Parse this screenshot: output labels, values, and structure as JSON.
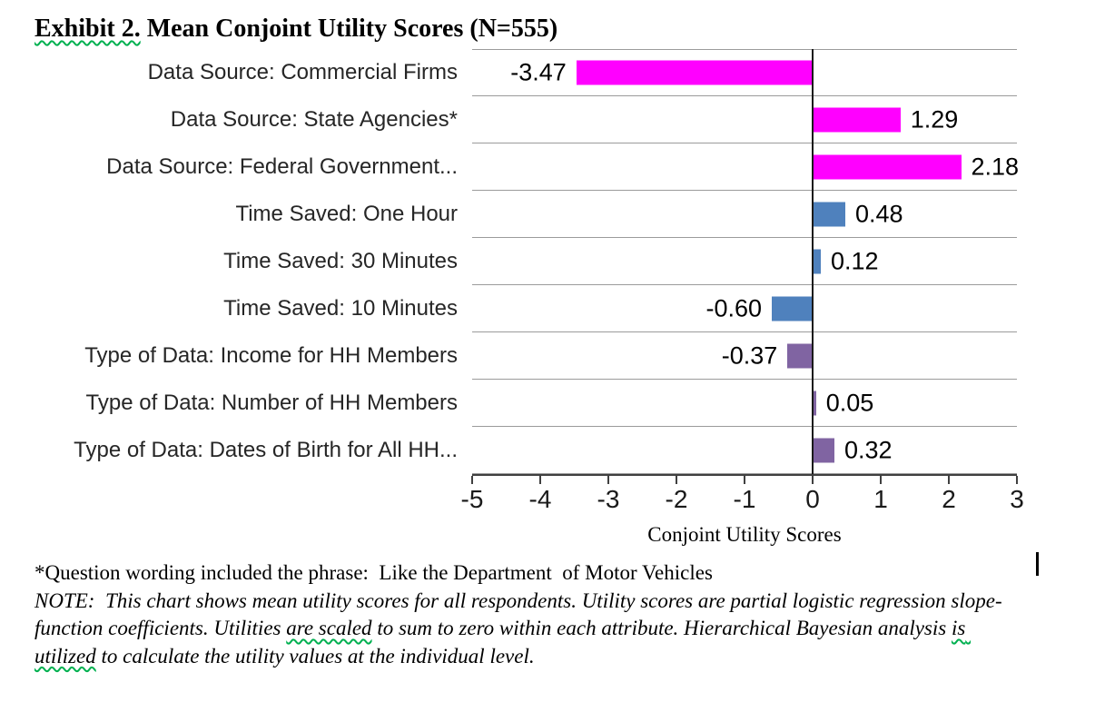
{
  "title_segments": [
    {
      "text": "Exhibit 2.",
      "wavy": true
    },
    {
      "text": " Mean Conjoint Utility Scores (N=555)",
      "wavy": false
    }
  ],
  "chart_data": {
    "type": "bar",
    "orientation": "horizontal",
    "title": "Exhibit 2. Mean Conjoint Utility Scores (N=555)",
    "xlabel": "Conjoint Utility Scores",
    "xlim": [
      -5,
      3
    ],
    "xticks": [
      "-5",
      "-4",
      "-3",
      "-2",
      "-1",
      "0",
      "1",
      "2",
      "3"
    ],
    "grid": "horizontal row separator lines, vertical zero line",
    "legend": "none",
    "categories": [
      "Data Source: Commercial Firms",
      "Data Source: State Agencies*",
      "Data Source: Federal Government...",
      "Time Saved: One Hour",
      "Time Saved: 30 Minutes",
      "Time Saved: 10 Minutes",
      "Type of Data: Income for HH Members",
      "Type of Data: Number of HH Members",
      "Type of Data: Dates of Birth for All HH..."
    ],
    "values": [
      -3.47,
      1.29,
      2.18,
      0.48,
      0.12,
      -0.6,
      -0.37,
      0.05,
      0.32
    ],
    "value_labels": [
      "-3.47",
      "1.29",
      "2.18",
      "0.48",
      "0.12",
      "-0.60",
      "-0.37",
      "0.05",
      "0.32"
    ],
    "bar_colors": [
      "#FF00FF",
      "#FF00FF",
      "#FF00FF",
      "#4F81BD",
      "#4F81BD",
      "#4F81BD",
      "#8064A2",
      "#8064A2",
      "#8064A2"
    ],
    "color_groups": {
      "data_source": "#FF00FF",
      "time_saved": "#4F81BD",
      "type_of_data": "#8064A2"
    }
  },
  "footnotes": {
    "asterisk": "*Question wording included the phrase:  Like the Department  of Motor Vehicles",
    "note_segments": [
      {
        "text": "NOTE:  This chart shows mean utility scores for all respondents. Utility scores are partial logistic regression slope-function coefficients. Utilities ",
        "wavy": false
      },
      {
        "text": "are scaled",
        "wavy": true
      },
      {
        "text": " to sum to zero within each attribute. Hierarchical Bayesian analysis ",
        "wavy": false
      },
      {
        "text": "is utilized",
        "wavy": true
      },
      {
        "text": " to calculate the utility values at the individual level.",
        "wavy": false
      }
    ]
  }
}
